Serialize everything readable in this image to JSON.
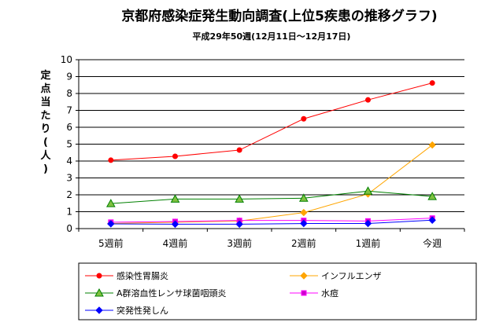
{
  "chart_data": {
    "type": "line",
    "title": "京都府感染症発生動向調査(上位5疾患の推移グラフ)",
    "subtitle": "平成29年50週(12月11日〜12月17日)",
    "xlabel": "",
    "ylabel": "定点当たり(人)",
    "ylim": [
      0,
      10
    ],
    "yticks": [
      "0",
      "1",
      "2",
      "3",
      "4",
      "5",
      "6",
      "7",
      "8",
      "9",
      "10"
    ],
    "categories": [
      "5週前",
      "4週前",
      "3週前",
      "2週前",
      "1週前",
      "今週"
    ],
    "grid": true,
    "legend_position": "bottom",
    "series": [
      {
        "name": "感染性胃腸炎",
        "color": "#ff0000",
        "marker": "circle",
        "marker_fill": "#ff0000",
        "values": [
          4.05,
          4.28,
          4.65,
          6.5,
          7.62,
          8.62
        ]
      },
      {
        "name": "インフルエンザ",
        "color": "#ffa500",
        "marker": "diamond",
        "marker_fill": "#ffa500",
        "values": [
          0.3,
          0.38,
          0.45,
          0.95,
          2.05,
          4.95
        ]
      },
      {
        "name": "A群溶血性レンサ球菌咽頭炎",
        "color": "#008000",
        "marker": "triangle",
        "marker_fill": "#80c040",
        "values": [
          1.48,
          1.75,
          1.75,
          1.8,
          2.22,
          1.9
        ]
      },
      {
        "name": "水痘",
        "color": "#ff00ff",
        "marker": "square",
        "marker_fill": "#cc00cc",
        "values": [
          0.38,
          0.42,
          0.48,
          0.48,
          0.45,
          0.62
        ]
      },
      {
        "name": "突発性発しん",
        "color": "#0000ff",
        "marker": "diamond",
        "marker_fill": "#0000ff",
        "values": [
          0.28,
          0.26,
          0.26,
          0.3,
          0.3,
          0.5
        ]
      }
    ]
  }
}
